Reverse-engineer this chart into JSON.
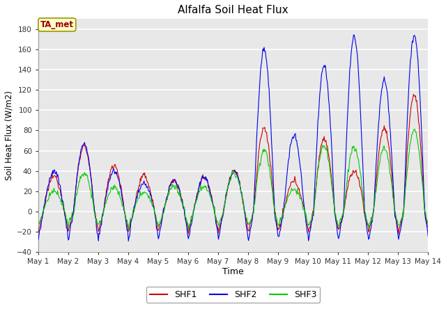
{
  "title": "Alfalfa Soil Heat Flux",
  "xlabel": "Time",
  "ylabel": "Soil Heat Flux (W/m2)",
  "ylim": [
    -40,
    190
  ],
  "yticks": [
    -40,
    -20,
    0,
    20,
    40,
    60,
    80,
    100,
    120,
    140,
    160,
    180
  ],
  "colors": {
    "SHF1": "#cc0000",
    "SHF2": "#0000ee",
    "SHF3": "#00cc00"
  },
  "fig_color": "#ffffff",
  "plot_bg_color": "#e8e8e8",
  "grid_color": "#ffffff",
  "annotation_text": "TA_met",
  "annotation_color": "#990000",
  "annotation_bg": "#ffffcc",
  "annotation_edge": "#999900",
  "num_days": 13,
  "points_per_day": 48,
  "start_day": 1
}
